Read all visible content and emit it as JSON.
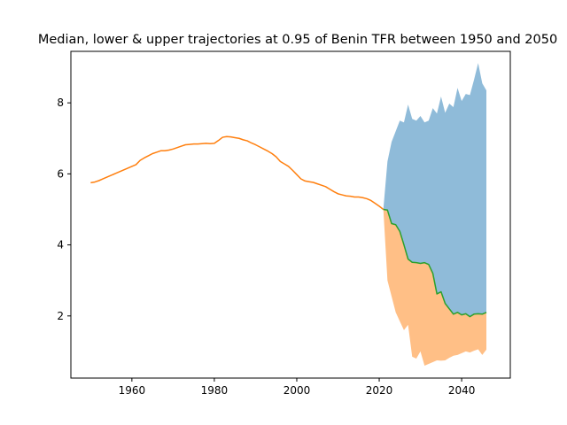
{
  "chart_data": {
    "type": "area",
    "title": "Median, lower & upper trajectories at 0.95 of Benin TFR between 1950 and 2050",
    "xlabel": "",
    "ylabel": "",
    "xlim": [
      1945.2,
      2051.8
    ],
    "ylim": [
      0.25,
      9.45
    ],
    "x_ticks": [
      1960,
      1980,
      2000,
      2020,
      2040
    ],
    "y_ticks": [
      2,
      4,
      6,
      8
    ],
    "grid": false,
    "colors": {
      "upper_fill": "#1f77b4",
      "lower_fill": "#ff7f0e",
      "median_line": "#2ca02c",
      "historical_line": "#ff7f0e"
    },
    "historical": {
      "x": [
        1950,
        1951,
        1952,
        1953,
        1954,
        1955,
        1956,
        1957,
        1958,
        1959,
        1960,
        1961,
        1962,
        1963,
        1964,
        1965,
        1966,
        1967,
        1968,
        1969,
        1970,
        1971,
        1972,
        1973,
        1974,
        1975,
        1976,
        1977,
        1978,
        1979,
        1980,
        1981,
        1982,
        1983,
        1984,
        1985,
        1986,
        1987,
        1988,
        1989,
        1990,
        1991,
        1992,
        1993,
        1994,
        1995,
        1996,
        1997,
        1998,
        1999,
        2000,
        2001,
        2002,
        2003,
        2004,
        2005,
        2006,
        2007,
        2008,
        2009,
        2010,
        2011,
        2012,
        2013,
        2014,
        2015,
        2016,
        2017,
        2018,
        2019,
        2020,
        2021
      ],
      "y": [
        5.75,
        5.77,
        5.81,
        5.86,
        5.91,
        5.96,
        6.01,
        6.06,
        6.11,
        6.16,
        6.21,
        6.26,
        6.38,
        6.45,
        6.51,
        6.57,
        6.61,
        6.65,
        6.65,
        6.67,
        6.7,
        6.74,
        6.78,
        6.82,
        6.83,
        6.84,
        6.84,
        6.85,
        6.86,
        6.85,
        6.86,
        6.94,
        7.03,
        7.05,
        7.04,
        7.02,
        7.0,
        6.96,
        6.93,
        6.87,
        6.82,
        6.76,
        6.7,
        6.64,
        6.57,
        6.48,
        6.35,
        6.28,
        6.21,
        6.1,
        5.98,
        5.86,
        5.8,
        5.78,
        5.76,
        5.72,
        5.68,
        5.64,
        5.57,
        5.5,
        5.44,
        5.41,
        5.38,
        5.37,
        5.35,
        5.35,
        5.33,
        5.3,
        5.25,
        5.17,
        5.09,
        5.0
      ]
    },
    "projection": {
      "x": [
        2021,
        2022,
        2023,
        2024,
        2025,
        2026,
        2027,
        2028,
        2029,
        2030,
        2031,
        2032,
        2033,
        2034,
        2035,
        2036,
        2037,
        2038,
        2039,
        2040,
        2041,
        2042,
        2043,
        2044,
        2045,
        2046
      ],
      "median": [
        5.0,
        4.98,
        4.6,
        4.57,
        4.38,
        4.0,
        3.6,
        3.51,
        3.5,
        3.48,
        3.5,
        3.45,
        3.2,
        2.62,
        2.68,
        2.35,
        2.2,
        2.05,
        2.1,
        2.03,
        2.06,
        1.98,
        2.05,
        2.06,
        2.05,
        2.1
      ],
      "upper": [
        5.0,
        6.35,
        6.9,
        7.2,
        7.5,
        7.45,
        7.95,
        7.55,
        7.5,
        7.63,
        7.45,
        7.5,
        7.85,
        7.7,
        8.18,
        7.72,
        7.98,
        7.88,
        8.42,
        8.05,
        8.25,
        8.22,
        8.65,
        9.12,
        8.55,
        8.35
      ],
      "lower": [
        5.0,
        3.0,
        2.55,
        2.1,
        1.85,
        1.6,
        1.75,
        0.85,
        0.8,
        1.0,
        0.6,
        0.65,
        0.7,
        0.75,
        0.74,
        0.75,
        0.82,
        0.88,
        0.9,
        0.95,
        1.0,
        0.97,
        1.02,
        1.06,
        0.9,
        1.05
      ]
    }
  }
}
